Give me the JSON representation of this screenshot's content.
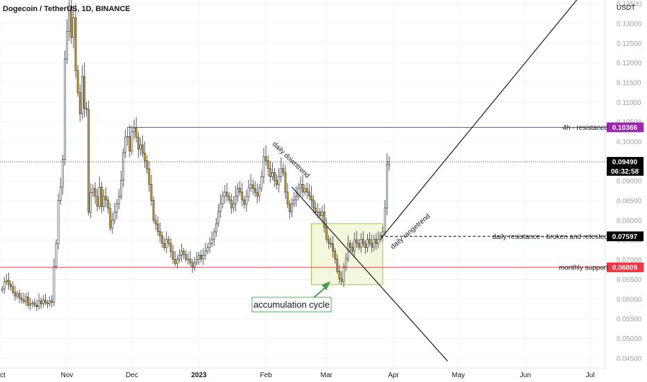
{
  "header": {
    "title": "Dogecoin / TetherUS, 1D, BINANCE",
    "unit": "USDT"
  },
  "annotations": {
    "resistance_4h": "4h - resistance",
    "daily_resistance": "daily resistance - broken and retested",
    "monthly_support": "monthly support",
    "daily_downtrend": "daily downtrend",
    "daily_rangetrend": "daily rangetrend",
    "accumulation": "accumulation cycle",
    "countdown": "06:32:58"
  },
  "colors": {
    "candle_up": "#ffffff",
    "candle_down": "#d4a017",
    "resistance_4h": "#9c27b0",
    "support_monthly": "#f23645",
    "daily_resistance_badge": "#000000",
    "last_price_badge": "#000000",
    "accumulation_box_fill": "#f3f8dc",
    "accumulation_box_stroke": "#9bc53d",
    "accumulation_label_border": "#4caf50"
  },
  "chart_data": {
    "type": "candlestick",
    "symbol": "Dogecoin / TetherUS",
    "interval": "1D",
    "exchange": "BINANCE",
    "y_unit": "USDT",
    "ylim": [
      0.0425,
      0.136
    ],
    "y_ticks": [
      "0.04500",
      "0.05000",
      "0.05500",
      "0.06000",
      "0.06500",
      "0.07000",
      "0.07500",
      "0.08000",
      "0.08500",
      "0.09000",
      "0.09500",
      "0.10000",
      "0.10500",
      "0.11000",
      "0.11500",
      "0.12000",
      "0.12500",
      "0.13000",
      "0.13500"
    ],
    "x_ticks": [
      {
        "label": "Oct",
        "x": 0
      },
      {
        "label": "Nov",
        "x": 31
      },
      {
        "label": "Dec",
        "x": 61
      },
      {
        "label": "2023",
        "x": 92,
        "bold": true
      },
      {
        "label": "Feb",
        "x": 123
      },
      {
        "label": "Mar",
        "x": 151
      },
      {
        "label": "Apr",
        "x": 182
      },
      {
        "label": "May",
        "x": 212
      },
      {
        "label": "Jun",
        "x": 243
      },
      {
        "label": "Jul",
        "x": 273
      }
    ],
    "xlim": [
      0,
      280
    ],
    "candle_start_x": 1,
    "closes": [
      0.0626,
      0.0645,
      0.0648,
      0.0638,
      0.0632,
      0.0618,
      0.0608,
      0.0614,
      0.0603,
      0.0598,
      0.0594,
      0.0606,
      0.0585,
      0.0588,
      0.0591,
      0.0585,
      0.0581,
      0.0596,
      0.0588,
      0.0598,
      0.0591,
      0.0588,
      0.0596,
      0.0592,
      0.0683,
      0.0741,
      0.0851,
      0.0885,
      0.0955,
      0.121,
      0.128,
      0.1345,
      0.1265,
      0.1315,
      0.1181,
      0.1125,
      0.1071,
      0.1166,
      0.1085,
      0.1082,
      0.0821,
      0.0871,
      0.0881,
      0.0861,
      0.0836,
      0.0885,
      0.0835,
      0.0861,
      0.0852,
      0.0831,
      0.0781,
      0.0801,
      0.0821,
      0.0842,
      0.0862,
      0.0902,
      0.0972,
      0.1012,
      0.1013,
      0.0976,
      0.1025,
      0.1035,
      0.1012,
      0.0981,
      0.0992,
      0.0971,
      0.0952,
      0.0931,
      0.0892,
      0.0851,
      0.0801,
      0.0791,
      0.0772,
      0.0761,
      0.0742,
      0.0731,
      0.0752,
      0.0742,
      0.0721,
      0.0701,
      0.0691,
      0.0702,
      0.0712,
      0.0722,
      0.0713,
      0.0701,
      0.0702,
      0.0692,
      0.0682,
      0.0693,
      0.0701,
      0.0712,
      0.0702,
      0.0712,
      0.0722,
      0.0731,
      0.0742,
      0.0752,
      0.0771,
      0.0792,
      0.0822,
      0.0842,
      0.0862,
      0.0872,
      0.0862,
      0.0852,
      0.0832,
      0.0842,
      0.0862,
      0.0882,
      0.0872,
      0.0852,
      0.0841,
      0.0862,
      0.0882,
      0.0891,
      0.0881,
      0.0871,
      0.0862,
      0.0882,
      0.0911,
      0.0962,
      0.0952,
      0.0932,
      0.0911,
      0.0922,
      0.0902,
      0.0891,
      0.0911,
      0.0932,
      0.0921,
      0.0872,
      0.0842,
      0.0822,
      0.0842,
      0.0852,
      0.0862,
      0.0882,
      0.0892,
      0.0872,
      0.0881,
      0.0872,
      0.0862,
      0.0852,
      0.0832,
      0.0821,
      0.0822,
      0.0812,
      0.0822,
      0.0782,
      0.0752,
      0.0742,
      0.0741,
      0.0722,
      0.0702,
      0.0671,
      0.0652,
      0.0645,
      0.0682,
      0.0702,
      0.0742,
      0.0732,
      0.0722,
      0.0751,
      0.0742,
      0.0732,
      0.0752,
      0.0741,
      0.0731,
      0.0752,
      0.0742,
      0.0732,
      0.0752,
      0.0741,
      0.0752,
      0.0762,
      0.0771,
      0.0832,
      0.0942,
      0.0949
    ],
    "levels": [
      {
        "name": "4h - resistance",
        "value": 0.10366,
        "label": "0.10366",
        "color": "#9c27b0",
        "x_from": 59
      },
      {
        "name": "daily resistance - broken and retested",
        "value": 0.07597,
        "label": "0.07597",
        "color": "#000000",
        "x_from": 176,
        "dashed": true
      },
      {
        "name": "monthly support",
        "value": 0.06809,
        "label": "0.06809",
        "color": "#f23645",
        "x_from": 0
      }
    ],
    "last_price": {
      "value": 0.0949,
      "label": "0.09490"
    },
    "trendlines": [
      {
        "name": "daily downtrend",
        "points": [
          [
            135,
            0.0885
          ],
          [
            207,
            0.0443
          ]
        ]
      },
      {
        "name": "daily rangetrend",
        "points": [
          [
            176,
            0.0753
          ],
          [
            272,
            0.1395
          ]
        ]
      }
    ],
    "accumulation_box": {
      "x": [
        144,
        177
      ],
      "y": [
        0.0637,
        0.0792
      ]
    }
  }
}
